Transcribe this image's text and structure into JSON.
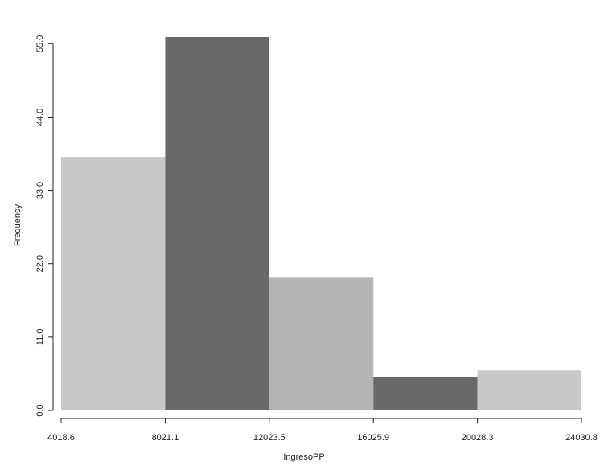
{
  "chart_data": {
    "type": "histogram",
    "x_label": "IngresoPP",
    "y_label": "Frequency",
    "bins": [
      4018.6,
      8021.1,
      12023.5,
      16025.9,
      20028.3,
      24030.8
    ],
    "values": [
      38,
      56,
      20,
      5,
      6
    ],
    "colors": [
      "#c8c8c8",
      "#696969",
      "#b4b4b4",
      "#696969",
      "#c8c8c8"
    ],
    "xlim": [
      4018.6,
      24030.8
    ],
    "xticks": [
      4018.6,
      8021.1,
      12023.5,
      16025.9,
      20028.3,
      24030.8
    ],
    "ylim": [
      0,
      56
    ],
    "yticks": [
      {
        "value": 0,
        "label": "0.0"
      },
      {
        "value": 11,
        "label": "11.0"
      },
      {
        "value": 22,
        "label": "22.0"
      },
      {
        "value": 33,
        "label": "33.0"
      },
      {
        "value": 44,
        "label": "44.0"
      },
      {
        "value": 55,
        "label": "55.0"
      }
    ]
  }
}
